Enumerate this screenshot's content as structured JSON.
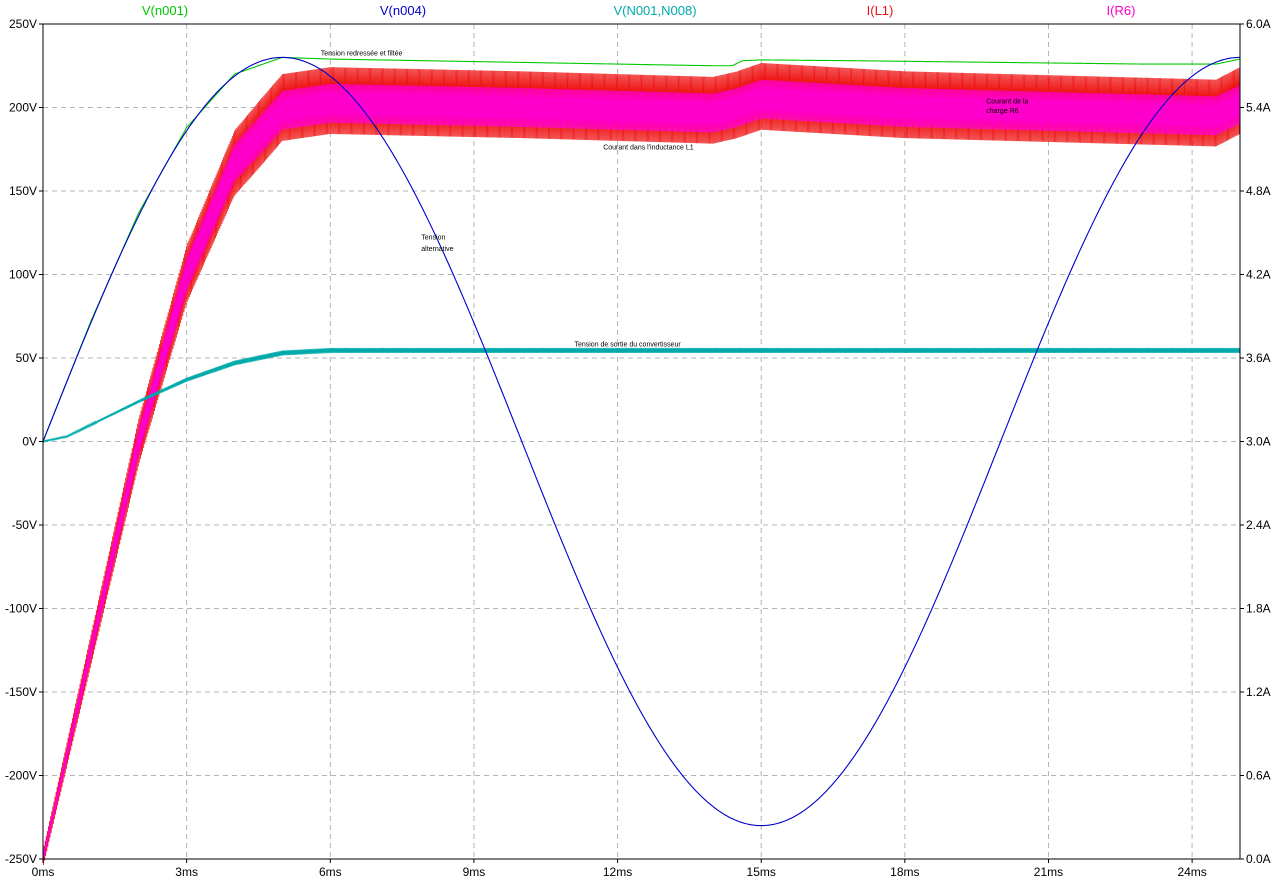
{
  "chart_data": {
    "type": "line",
    "x_range_ms": [
      0,
      25
    ],
    "x_ticks": [
      {
        "value": 0,
        "label": "0ms"
      },
      {
        "value": 3,
        "label": "3ms"
      },
      {
        "value": 6,
        "label": "6ms"
      },
      {
        "value": 9,
        "label": "9ms"
      },
      {
        "value": 12,
        "label": "12ms"
      },
      {
        "value": 15,
        "label": "15ms"
      },
      {
        "value": 18,
        "label": "18ms"
      },
      {
        "value": 21,
        "label": "21ms"
      },
      {
        "value": 24,
        "label": "24ms"
      }
    ],
    "y_left": {
      "range": [
        -250,
        250
      ],
      "ticks": [
        {
          "value": 250,
          "label": "250V"
        },
        {
          "value": 200,
          "label": "200V"
        },
        {
          "value": 150,
          "label": "150V"
        },
        {
          "value": 100,
          "label": "100V"
        },
        {
          "value": 50,
          "label": "50V"
        },
        {
          "value": 0,
          "label": "0V"
        },
        {
          "value": -50,
          "label": "-50V"
        },
        {
          "value": -100,
          "label": "-100V"
        },
        {
          "value": -150,
          "label": "-150V"
        },
        {
          "value": -200,
          "label": "-200V"
        },
        {
          "value": -250,
          "label": "-250V"
        }
      ]
    },
    "y_right": {
      "range": [
        0,
        6
      ],
      "ticks": [
        {
          "value": 6.0,
          "label": "6.0A"
        },
        {
          "value": 5.4,
          "label": "5.4A"
        },
        {
          "value": 4.8,
          "label": "4.8A"
        },
        {
          "value": 4.2,
          "label": "4.2A"
        },
        {
          "value": 3.6,
          "label": "3.6A"
        },
        {
          "value": 3.0,
          "label": "3.0A"
        },
        {
          "value": 2.4,
          "label": "2.4A"
        },
        {
          "value": 1.8,
          "label": "1.8A"
        },
        {
          "value": 1.2,
          "label": "1.2A"
        },
        {
          "value": 0.6,
          "label": "0.6A"
        },
        {
          "value": 0.0,
          "label": "0.0A"
        }
      ]
    },
    "grid": true,
    "series": [
      {
        "name": "V(n001)",
        "color": "#00c800",
        "axis": "left",
        "x": [
          0,
          1,
          2,
          3,
          4,
          5,
          6,
          8,
          10,
          12,
          14,
          14.4,
          14.6,
          15,
          17,
          20,
          23,
          24.5,
          25
        ],
        "y": [
          0,
          72,
          137,
          188,
          220,
          230,
          229,
          228,
          227,
          226,
          225,
          225,
          228,
          228.5,
          228,
          227,
          226,
          226,
          229
        ]
      },
      {
        "name": "V(n004)",
        "color": "#0000cc",
        "axis": "left",
        "x": [
          0,
          1,
          2,
          3,
          4,
          5,
          6,
          7,
          8,
          9,
          10,
          11,
          12,
          13,
          14,
          15,
          16,
          17,
          18,
          19,
          20,
          21,
          22,
          23,
          24,
          25
        ],
        "y": [
          0,
          71,
          135,
          186,
          219,
          230,
          219,
          186,
          135,
          71,
          0,
          -71,
          -135,
          -186,
          -219,
          -230,
          -219,
          -186,
          -135,
          -71,
          0,
          71,
          135,
          186,
          219,
          230
        ]
      },
      {
        "name": "V(N001,N008)",
        "color": "#00aaaa",
        "axis": "left",
        "x": [
          0,
          0.5,
          1,
          2,
          3,
          4,
          5,
          6,
          10,
          15,
          20,
          25
        ],
        "y": [
          0,
          3,
          10,
          24,
          37,
          47,
          53,
          54.5,
          54.5,
          54.5,
          54.5,
          54.5
        ],
        "ripple": 1.5
      },
      {
        "name": "I(L1)",
        "color": "#ee1111",
        "axis": "right",
        "x": [
          0,
          1,
          2,
          3,
          4,
          5,
          6,
          10,
          14,
          14.5,
          15,
          18,
          24.5,
          25
        ],
        "y": [
          0,
          1.5,
          3.0,
          4.2,
          5.0,
          5.4,
          5.45,
          5.42,
          5.38,
          5.42,
          5.48,
          5.42,
          5.36,
          5.45
        ],
        "ripple": 0.24
      },
      {
        "name": "I(R6)",
        "color": "#ff00cc",
        "axis": "right",
        "x": [
          0,
          1,
          2,
          3,
          4,
          5,
          6,
          10,
          14,
          14.5,
          15,
          18,
          24.5,
          25
        ],
        "y": [
          0,
          1.5,
          3.0,
          4.2,
          5.0,
          5.38,
          5.43,
          5.4,
          5.36,
          5.4,
          5.46,
          5.4,
          5.34,
          5.42
        ],
        "ripple": 0.14
      }
    ],
    "annotations": [
      {
        "text": "Tension redressée et filtée",
        "x": 5.8,
        "y": 231,
        "axis": "left"
      },
      {
        "text": "Courant dans l'inductance L1",
        "x": 11.7,
        "y": 5.1,
        "axis": "right"
      },
      {
        "text": "Tension",
        "x": 7.9,
        "y": 121,
        "axis": "left"
      },
      {
        "text": "alternative",
        "x": 7.9,
        "y": 114,
        "axis": "left"
      },
      {
        "text": "Tension de sortie du convertisseur",
        "x": 11.1,
        "y": 57,
        "axis": "left"
      },
      {
        "text": "Courant de la",
        "x": 19.7,
        "y": 5.43,
        "axis": "right"
      },
      {
        "text": "charge R6",
        "x": 19.7,
        "y": 5.36,
        "axis": "right"
      }
    ]
  }
}
